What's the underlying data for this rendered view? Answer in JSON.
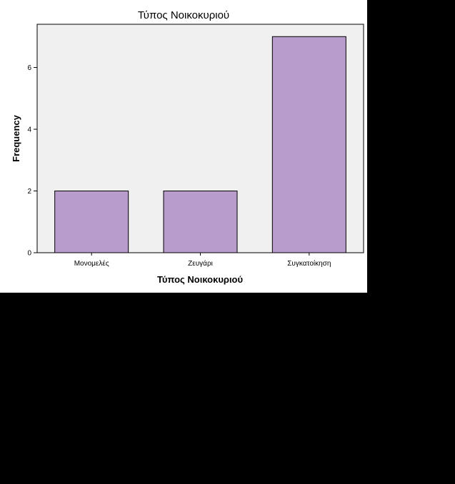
{
  "colors": {
    "plot_background": "#f0f0f0",
    "bar_fill": "#b89ccb",
    "bar_stroke": "#000000",
    "page_background": "#ffffff",
    "outer_background": "#000000"
  },
  "chart_data": {
    "type": "bar",
    "title": "Τύπος Νοικοκυριού",
    "xlabel": "Τύπος Νοικοκυριού",
    "ylabel": "Frequency",
    "categories": [
      "Μονομελές",
      "Ζευγάρι",
      "Συγκατοίκηση"
    ],
    "values": [
      2,
      2,
      7
    ],
    "ylim": [
      0,
      7.4
    ],
    "yticks": [
      0,
      2,
      4,
      6
    ],
    "grid": false,
    "legend": "none"
  }
}
